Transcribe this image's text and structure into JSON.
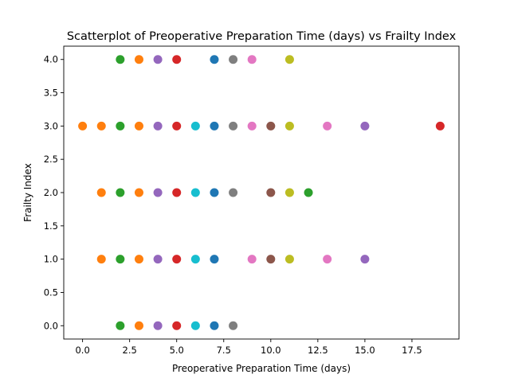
{
  "chart_data": {
    "type": "scatter",
    "title": "Scatterplot of Preoperative Preparation Time (days) vs Frailty Index",
    "xlabel": "Preoperative Preparation Time (days)",
    "ylabel": "Frailty Index",
    "xlim": [
      -1,
      20
    ],
    "ylim": [
      -0.2,
      4.2
    ],
    "xticks": [
      0.0,
      2.5,
      5.0,
      7.5,
      10.0,
      12.5,
      15.0,
      17.5
    ],
    "xtick_labels": [
      "0.0",
      "2.5",
      "5.0",
      "7.5",
      "10.0",
      "12.5",
      "15.0",
      "17.5"
    ],
    "yticks": [
      0.0,
      0.5,
      1.0,
      1.5,
      2.0,
      2.5,
      3.0,
      3.5,
      4.0
    ],
    "ytick_labels": [
      "0.0",
      "0.5",
      "1.0",
      "1.5",
      "2.0",
      "2.5",
      "3.0",
      "3.5",
      "4.0"
    ],
    "grid": false,
    "colors": {
      "0": "#ff7f0e",
      "1": "#ff7f0e",
      "2": "#2ca02c",
      "3": "#ff7f0e",
      "4": "#9467bd",
      "5": "#d62728",
      "6": "#17becf",
      "7": "#1f77b4",
      "8": "#7f7f7f",
      "9": "#e377c2",
      "10": "#8c564b",
      "11": "#bcbd22",
      "12": "#2ca02c",
      "13": "#e377c2",
      "15": "#9467bd",
      "19": "#d62728"
    },
    "points": [
      {
        "x": 2,
        "y": 4
      },
      {
        "x": 3,
        "y": 4
      },
      {
        "x": 4,
        "y": 4
      },
      {
        "x": 5,
        "y": 4
      },
      {
        "x": 7,
        "y": 4
      },
      {
        "x": 8,
        "y": 4
      },
      {
        "x": 9,
        "y": 4
      },
      {
        "x": 11,
        "y": 4
      },
      {
        "x": 0,
        "y": 3
      },
      {
        "x": 1,
        "y": 3
      },
      {
        "x": 2,
        "y": 3
      },
      {
        "x": 3,
        "y": 3
      },
      {
        "x": 4,
        "y": 3
      },
      {
        "x": 5,
        "y": 3
      },
      {
        "x": 6,
        "y": 3
      },
      {
        "x": 7,
        "y": 3
      },
      {
        "x": 8,
        "y": 3
      },
      {
        "x": 9,
        "y": 3
      },
      {
        "x": 10,
        "y": 3
      },
      {
        "x": 11,
        "y": 3
      },
      {
        "x": 13,
        "y": 3
      },
      {
        "x": 15,
        "y": 3
      },
      {
        "x": 19,
        "y": 3
      },
      {
        "x": 1,
        "y": 2
      },
      {
        "x": 2,
        "y": 2
      },
      {
        "x": 3,
        "y": 2
      },
      {
        "x": 4,
        "y": 2
      },
      {
        "x": 5,
        "y": 2
      },
      {
        "x": 6,
        "y": 2
      },
      {
        "x": 7,
        "y": 2
      },
      {
        "x": 8,
        "y": 2
      },
      {
        "x": 10,
        "y": 2
      },
      {
        "x": 11,
        "y": 2
      },
      {
        "x": 12,
        "y": 2
      },
      {
        "x": 1,
        "y": 1
      },
      {
        "x": 2,
        "y": 1
      },
      {
        "x": 3,
        "y": 1
      },
      {
        "x": 4,
        "y": 1
      },
      {
        "x": 5,
        "y": 1
      },
      {
        "x": 6,
        "y": 1
      },
      {
        "x": 7,
        "y": 1
      },
      {
        "x": 9,
        "y": 1
      },
      {
        "x": 10,
        "y": 1
      },
      {
        "x": 11,
        "y": 1
      },
      {
        "x": 13,
        "y": 1
      },
      {
        "x": 15,
        "y": 1
      },
      {
        "x": 2,
        "y": 0
      },
      {
        "x": 3,
        "y": 0
      },
      {
        "x": 4,
        "y": 0
      },
      {
        "x": 5,
        "y": 0
      },
      {
        "x": 6,
        "y": 0
      },
      {
        "x": 7,
        "y": 0
      },
      {
        "x": 8,
        "y": 0
      }
    ]
  }
}
